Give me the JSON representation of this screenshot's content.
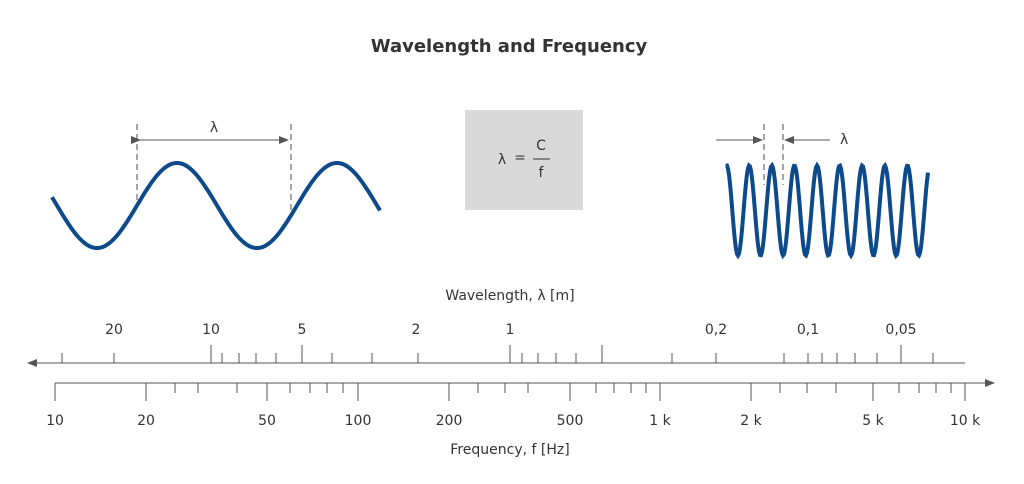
{
  "header": {
    "title": "Wavelength and Frequency"
  },
  "left_wave": {
    "label": "λ"
  },
  "right_wave": {
    "label": "λ"
  },
  "formula": {
    "lhs": "λ",
    "equals": "=",
    "numerator": "C",
    "denominator": "f"
  },
  "wavelength_axis": {
    "label": "Wavelength, λ [m]",
    "ticks": [
      "20",
      "10",
      "5",
      "2",
      "1",
      "0,2",
      "0,1",
      "0,05"
    ]
  },
  "frequency_axis": {
    "label": "Frequency, f [Hz]",
    "ticks": [
      "10",
      "20",
      "50",
      "100",
      "200",
      "500",
      "1 k",
      "2 k",
      "5 k",
      "10 k"
    ]
  }
}
